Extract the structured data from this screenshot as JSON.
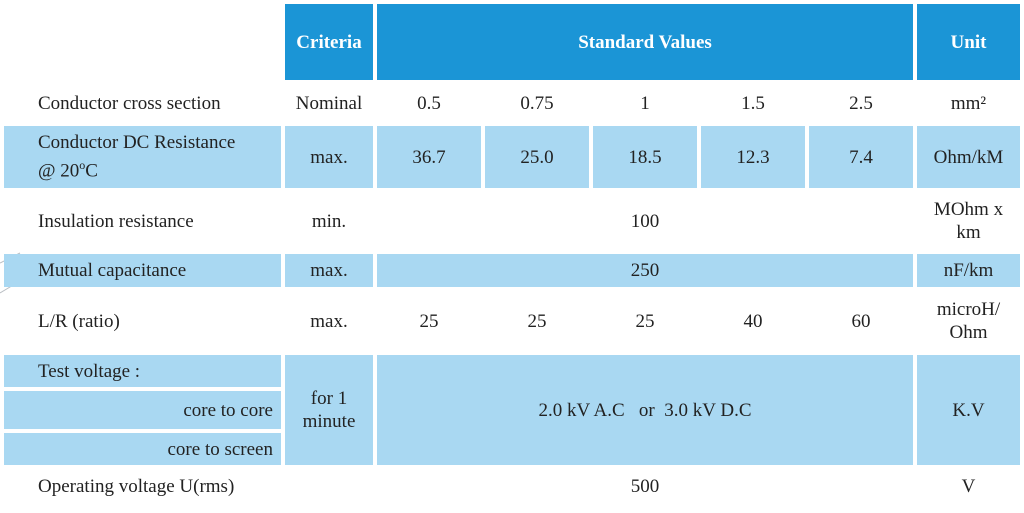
{
  "header": {
    "criteria": "Criteria",
    "standard_values": "Standard Values",
    "unit": "Unit"
  },
  "rows": {
    "cross_section": {
      "label": "Conductor cross section",
      "criteria": "Nominal",
      "values": [
        "0.5",
        "0.75",
        "1",
        "1.5",
        "2.5"
      ],
      "unit": "mm²"
    },
    "dc_resistance": {
      "label_line1": "Conductor DC Resistance",
      "label_line2_pre": "@ 20",
      "label_sup": "o",
      "label_line2_post": "C",
      "criteria": "max.",
      "values": [
        "36.7",
        "25.0",
        "18.5",
        "12.3",
        "7.4"
      ],
      "unit": "Ohm/kM"
    },
    "insulation": {
      "label": "Insulation resistance",
      "criteria": "min.",
      "value": "100",
      "unit_line1": "MOhm x",
      "unit_line2": "km"
    },
    "capacitance": {
      "label": "Mutual capacitance",
      "criteria": "max.",
      "value": "250",
      "unit": "nF/km"
    },
    "lr_ratio": {
      "label": "L/R (ratio)",
      "criteria": "max.",
      "values": [
        "25",
        "25",
        "25",
        "40",
        "60"
      ],
      "unit_line1": "microH/",
      "unit_line2": "Ohm"
    },
    "test_voltage": {
      "label": "Test voltage :",
      "sub1": "core to core",
      "sub2": "core to screen",
      "criteria_line1": "for 1",
      "criteria_line2": "minute",
      "value": "2.0 kV A.C   or  3.0 kV D.C",
      "unit": "K.V"
    },
    "operating_voltage": {
      "label": "Operating voltage  U(rms)",
      "value": "500",
      "unit": "V"
    }
  },
  "colors": {
    "header_bg": "#1b95d6",
    "shaded_bg": "#a9d8f2",
    "text": "#222222"
  }
}
